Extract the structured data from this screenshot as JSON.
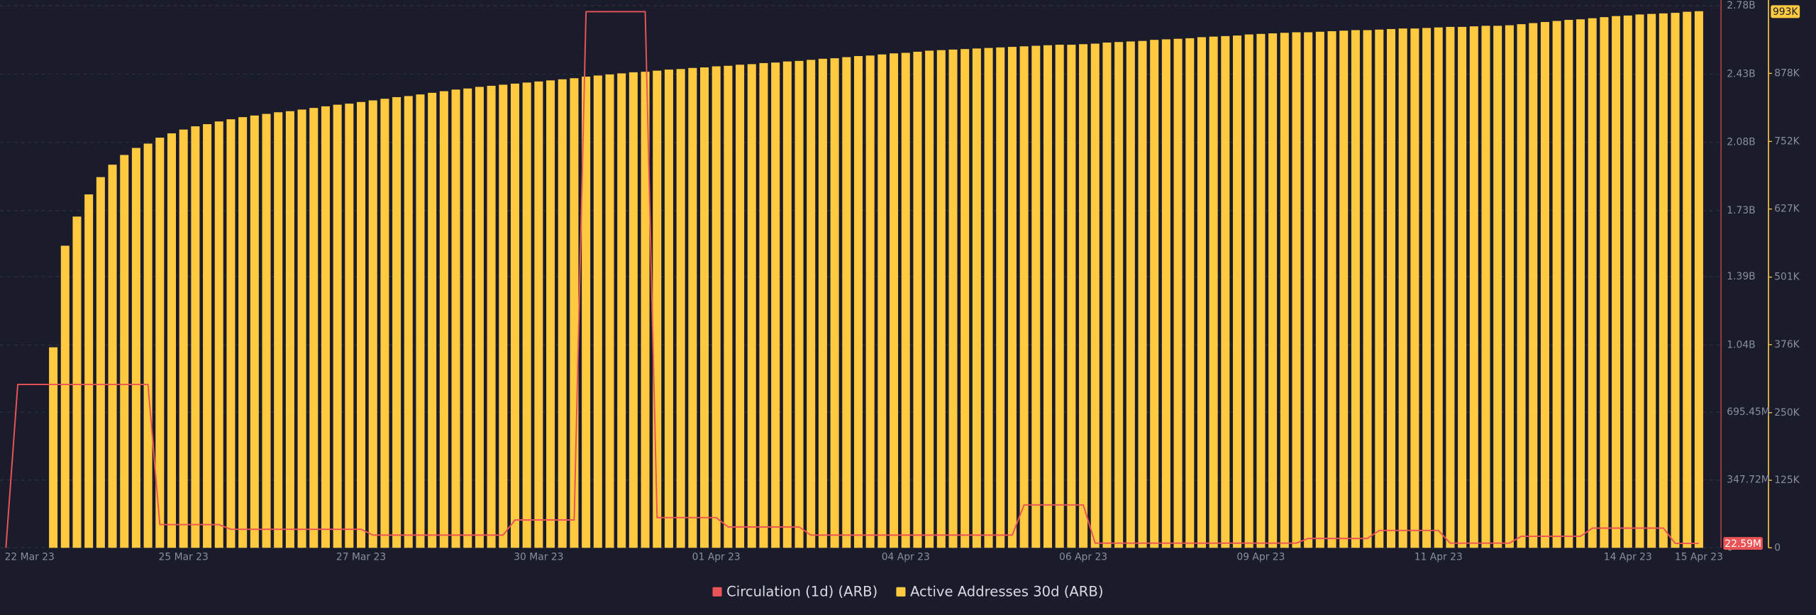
{
  "chart_data": {
    "type": "combo",
    "categories": [
      null,
      null,
      "22 Mar 23",
      null,
      null,
      null,
      null,
      null,
      null,
      null,
      null,
      null,
      null,
      null,
      null,
      "25 Mar 23",
      null,
      null,
      null,
      null,
      null,
      null,
      null,
      null,
      null,
      null,
      null,
      null,
      null,
      null,
      "27 Mar 23",
      null,
      null,
      null,
      null,
      null,
      null,
      null,
      null,
      null,
      null,
      null,
      null,
      null,
      null,
      "30 Mar 23",
      null,
      null,
      null,
      null,
      null,
      null,
      null,
      null,
      null,
      null,
      null,
      null,
      null,
      null,
      "01 Apr 23",
      null,
      null,
      null,
      null,
      null,
      null,
      null,
      null,
      null,
      null,
      null,
      null,
      null,
      null,
      null,
      "04 Apr 23",
      null,
      null,
      null,
      null,
      null,
      null,
      null,
      null,
      null,
      null,
      null,
      null,
      null,
      null,
      "06 Apr 23",
      null,
      null,
      null,
      null,
      null,
      null,
      null,
      null,
      null,
      null,
      null,
      null,
      null,
      null,
      "09 Apr 23",
      null,
      null,
      null,
      null,
      null,
      null,
      null,
      null,
      null,
      null,
      null,
      null,
      null,
      null,
      "11 Apr 23",
      null,
      null,
      null,
      null,
      null,
      null,
      null,
      null,
      null,
      null,
      null,
      null,
      null,
      null,
      null,
      "14 Apr 23",
      null,
      null,
      null,
      null,
      null,
      "15 Apr 23"
    ],
    "series": [
      {
        "name": "Circulation (1d) (ARB)",
        "type": "line",
        "axis": "y",
        "color": "#ea5457",
        "latest_label": "22.59M",
        "values": [
          0,
          838000000,
          838000000,
          838000000,
          838000000,
          838000000,
          838000000,
          838000000,
          838000000,
          838000000,
          838000000,
          838000000,
          838000000,
          119000000,
          119000000,
          119000000,
          119000000,
          119000000,
          119000000,
          95000000,
          95000000,
          95000000,
          95000000,
          95000000,
          95000000,
          95000000,
          95000000,
          95000000,
          95000000,
          95000000,
          95000000,
          65000000,
          65000000,
          65000000,
          65000000,
          65000000,
          65000000,
          65000000,
          65000000,
          65000000,
          65000000,
          65000000,
          65000000,
          143000000,
          143000000,
          143000000,
          143000000,
          143000000,
          143000000,
          2750000000,
          2750000000,
          2750000000,
          2750000000,
          2750000000,
          2750000000,
          155000000,
          155000000,
          155000000,
          155000000,
          155000000,
          155000000,
          107000000,
          107000000,
          107000000,
          107000000,
          107000000,
          107000000,
          107000000,
          65000000,
          65000000,
          65000000,
          65000000,
          65000000,
          65000000,
          65000000,
          65000000,
          65000000,
          65000000,
          65000000,
          65000000,
          65000000,
          65000000,
          65000000,
          65000000,
          65000000,
          65000000,
          220000000,
          220000000,
          220000000,
          220000000,
          220000000,
          220000000,
          24000000,
          24000000,
          24000000,
          24000000,
          24000000,
          24000000,
          24000000,
          24000000,
          24000000,
          24000000,
          24000000,
          24000000,
          24000000,
          24000000,
          24000000,
          24000000,
          24000000,
          24000000,
          48000000,
          48000000,
          48000000,
          48000000,
          48000000,
          48000000,
          89000000,
          89000000,
          89000000,
          89000000,
          89000000,
          89000000,
          24000000,
          24000000,
          24000000,
          24000000,
          24000000,
          24000000,
          59000000,
          59000000,
          59000000,
          59000000,
          59000000,
          59000000,
          101000000,
          101000000,
          101000000,
          101000000,
          101000000,
          101000000,
          101000000,
          22590000,
          22590000,
          22590000
        ]
      },
      {
        "name": "Active Addresses 30d (ARB)",
        "type": "bar",
        "axis": "y2",
        "color": "#ffc940",
        "latest_label": "993K",
        "values": [
          null,
          null,
          null,
          null,
          371000,
          559000,
          613000,
          654000,
          686000,
          709000,
          727000,
          740000,
          748000,
          759000,
          767000,
          774000,
          780000,
          784000,
          789000,
          793000,
          797000,
          800000,
          803000,
          806000,
          808000,
          811000,
          814000,
          817000,
          820000,
          822000,
          825000,
          828000,
          831000,
          834000,
          836000,
          839000,
          842000,
          845000,
          848000,
          850000,
          853000,
          855000,
          857000,
          859000,
          861000,
          863000,
          865000,
          867000,
          869000,
          872000,
          874000,
          876000,
          878000,
          880000,
          881000,
          883000,
          885000,
          886000,
          888000,
          889000,
          891000,
          892000,
          894000,
          895000,
          897000,
          898000,
          900000,
          901000,
          903000,
          905000,
          906000,
          908000,
          910000,
          911000,
          913000,
          915000,
          916000,
          918000,
          920000,
          921000,
          922000,
          923000,
          924000,
          925000,
          926000,
          927000,
          928000,
          929000,
          930000,
          931000,
          931000,
          932000,
          933000,
          935000,
          936000,
          937000,
          938000,
          940000,
          941000,
          942000,
          943000,
          945000,
          946000,
          947000,
          948000,
          950000,
          951000,
          952000,
          953000,
          954000,
          954000,
          955000,
          956000,
          957000,
          958000,
          958000,
          959000,
          960000,
          961000,
          961000,
          962000,
          963000,
          964000,
          964000,
          965000,
          966000,
          966000,
          967000,
          969000,
          971000,
          973000,
          975000,
          977000,
          978000,
          980000,
          982000,
          984000,
          985000,
          987000,
          988000,
          989000,
          990000,
          992000,
          993000
        ]
      }
    ],
    "ylim": [
      0,
      2780000000
    ],
    "yticks": [
      0,
      {
        "value": 347720000,
        "label": "347.72M"
      },
      {
        "value": 695450000,
        "label": "695.45M"
      },
      {
        "value": 1040000000,
        "label": "1.04B"
      },
      {
        "value": 1390000000,
        "label": "1.39B"
      },
      {
        "value": 1730000000,
        "label": "1.73B"
      },
      {
        "value": 2080000000,
        "label": "2.08B"
      },
      {
        "value": 2430000000,
        "label": "2.43B"
      },
      {
        "value": 2780000000,
        "label": "2.78B"
      }
    ],
    "y2lim": [
      0,
      1003000
    ],
    "y2ticks": [
      0,
      {
        "value": 125000,
        "label": "125K"
      },
      {
        "value": 250000,
        "label": "250K"
      },
      {
        "value": 376000,
        "label": "376K"
      },
      {
        "value": 501000,
        "label": "501K"
      },
      {
        "value": 627000,
        "label": "627K"
      },
      {
        "value": 752000,
        "label": "752K"
      },
      {
        "value": 878000,
        "label": "878K"
      }
    ],
    "grid": true,
    "legend": "bottom"
  }
}
